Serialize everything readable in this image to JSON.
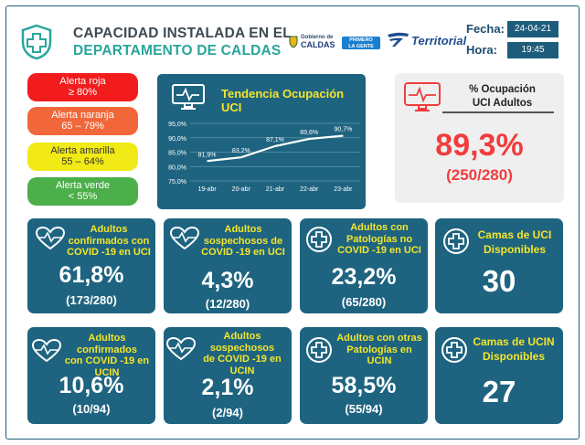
{
  "header": {
    "title_line1": "CAPACIDAD INSTALADA EN EL",
    "title_line2": "DEPARTAMENTO DE CALDAS",
    "gob_small": "Gobierno de",
    "gob_big": "CALDAS",
    "primero_line1": "PRIMERO",
    "primero_line2": "LA GENTE",
    "territorial": "Territorial",
    "fecha_label": "Fecha:",
    "fecha_value": "24-04-21",
    "hora_label": "Hora:",
    "hora_value": "19:45"
  },
  "alerts": [
    {
      "line1": "Alerta roja",
      "line2": "≥ 80%"
    },
    {
      "line1": "Alerta naranja",
      "line2": "65 – 79%"
    },
    {
      "line1": "Alerta amarilla",
      "line2": "55 – 64%"
    },
    {
      "line1": "Alerta verde",
      "line2": "< 55%"
    }
  ],
  "trend": {
    "title": "Tendencia Ocupación UCI"
  },
  "chart_data": {
    "type": "line",
    "title": "Tendencia Ocupación UCI",
    "categories": [
      "19-abr",
      "20-abr",
      "21-abr",
      "22-abr",
      "23-abr"
    ],
    "values": [
      81.9,
      83.2,
      87.1,
      89.6,
      90.7
    ],
    "data_labels": [
      "81,9%",
      "83,2%",
      "87,1%",
      "89,6%",
      "90,7%"
    ],
    "yticks": [
      "95,0%",
      "90,0%",
      "85,0%",
      "80,0%",
      "75,0%"
    ],
    "ylim": [
      75,
      95
    ],
    "grid": true,
    "colors": {
      "line": "#ffffff",
      "grid": "#5d93a8"
    }
  },
  "ocupacion": {
    "title_line1": "% Ocupación",
    "title_line2": "UCI Adultos",
    "value": "89,3%",
    "fraction": "(250/280)"
  },
  "cards": {
    "uci_confirmados": {
      "line1": "Adultos",
      "line2": "confirmados con",
      "line3": "COVID -19 en UCI",
      "value": "61,8%",
      "fraction": "(173/280)"
    },
    "uci_sospechosos": {
      "line1": "Adultos",
      "line2": "sospechosos de",
      "line3": "COVID -19 en UCI",
      "value": "4,3%",
      "fraction": "(12/280)"
    },
    "uci_patologias": {
      "line1": "Adultos con",
      "line2": "Patologías no",
      "line3": "COVID -19 en UCI",
      "value": "23,2%",
      "fraction": "(65/280)"
    },
    "uci_camas": {
      "line1": "Camas de UCI",
      "line2": "Disponibles",
      "value": "30"
    },
    "ucin_confirmados": {
      "line1": "Adultos confirmados",
      "line2": "con COVID -19 en",
      "line3": "UCIN",
      "value": "10,6%",
      "fraction": "(10/94)"
    },
    "ucin_sospechosos": {
      "line1": "Adultos sospechosos",
      "line2": "de COVID -19 en",
      "line3": "UCIN",
      "value": "2,1%",
      "fraction": "(2/94)"
    },
    "ucin_patologias": {
      "line1": "Adultos con otras",
      "line2": "Patologías en",
      "line3": "UCIN",
      "value": "58,5%",
      "fraction": "(55/94)"
    },
    "ucin_camas": {
      "line1": "Camas de UCIN",
      "line2": "Disponibles",
      "value": "27"
    }
  },
  "colors": {
    "teal_panel": "#1e6480",
    "yellow_title": "#f4e52a",
    "red_value": "#f23c3c",
    "title_teal": "#2aa59b"
  },
  "icons": [
    "medical-cross-shield-icon",
    "monitor-ecg-icon",
    "ecg-monitor-icon",
    "heart-pulse-icon",
    "medical-cross-circle-icon"
  ]
}
